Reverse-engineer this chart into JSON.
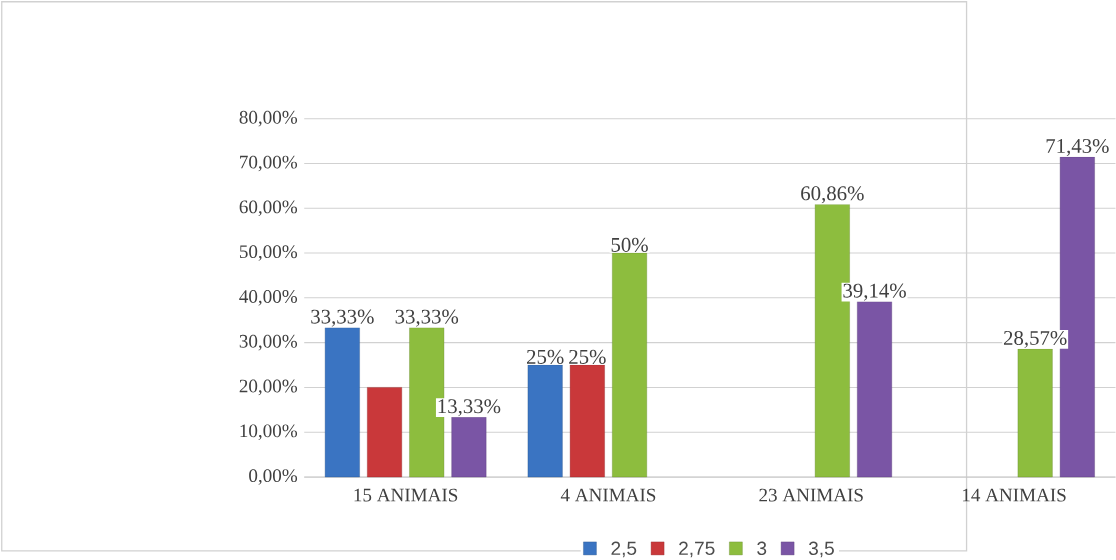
{
  "chart_data": {
    "type": "bar",
    "categories": [
      "15 ANIMAIS",
      "4 ANIMAIS",
      "23 ANIMAIS",
      "14 ANIMAIS"
    ],
    "series": [
      {
        "name": "2,5",
        "color": "#3a74c2",
        "values": [
          33.33,
          25,
          null,
          null
        ],
        "value_labels": [
          "33,33%",
          "25%",
          null,
          null
        ]
      },
      {
        "name": "2,75",
        "color": "#c9383a",
        "values": [
          20,
          25,
          null,
          null
        ],
        "value_labels": [
          null,
          "25%",
          null,
          null
        ]
      },
      {
        "name": "3",
        "color": "#8dbd3e",
        "values": [
          33.33,
          50,
          60.86,
          28.57
        ],
        "value_labels": [
          "33,33%",
          "50%",
          "60,86%",
          "28,57%"
        ]
      },
      {
        "name": "3,5",
        "color": "#7a55a5",
        "values": [
          13.33,
          null,
          39.14,
          71.43
        ],
        "value_labels": [
          "13,33%",
          null,
          "39,14%",
          "71,43%"
        ]
      }
    ],
    "ylim": [
      0,
      80
    ],
    "yticks": [
      {
        "value": 0,
        "label": "0,00%"
      },
      {
        "value": 10,
        "label": "10,00%"
      },
      {
        "value": 20,
        "label": "20,00%"
      },
      {
        "value": 30,
        "label": "30,00%"
      },
      {
        "value": 40,
        "label": "40,00%"
      },
      {
        "value": 50,
        "label": "50,00%"
      },
      {
        "value": 60,
        "label": "60,00%"
      },
      {
        "value": 70,
        "label": "70,00%"
      },
      {
        "value": 80,
        "label": "80,00%"
      }
    ],
    "grid": "y",
    "legend": "bottom"
  }
}
